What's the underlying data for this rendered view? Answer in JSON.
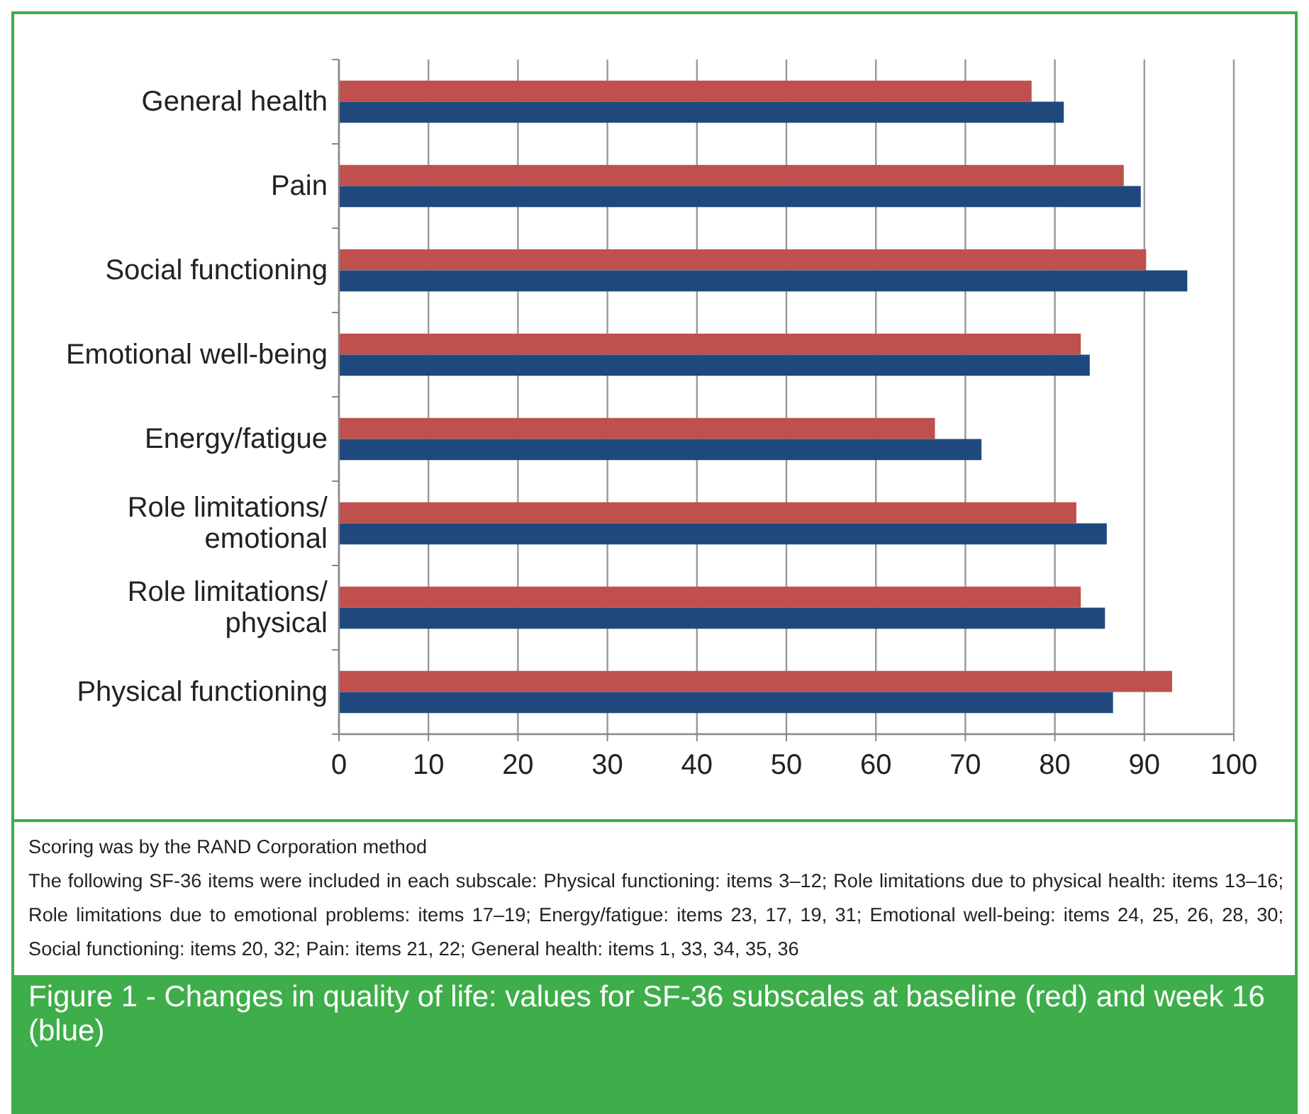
{
  "chart_data": {
    "type": "bar",
    "orientation": "horizontal",
    "title": "Figure 1 - Changes in quality of life: values for SF-36 subscales at baseline (red) and week 16 (blue)",
    "categories": [
      "General health",
      "Pain",
      "Social functioning",
      "Emotional well-being",
      "Energy/fatigue",
      "Role limitations/\nemotional",
      "Role limitations/\nphysical",
      "Physical functioning"
    ],
    "series": [
      {
        "color": "#c0504d",
        "values": [
          77.4,
          87.7,
          90.2,
          82.9,
          66.6,
          82.4,
          82.9,
          93.1
        ]
      },
      {
        "color": "#1f497d",
        "values": [
          81.0,
          89.6,
          94.8,
          83.9,
          71.8,
          85.8,
          85.6,
          86.5
        ]
      }
    ],
    "xlim": [
      0,
      100
    ],
    "xticks": [
      0,
      10,
      20,
      30,
      40,
      50,
      60,
      70,
      80,
      90,
      100
    ],
    "grid": "x",
    "annotations": [
      "Scoring was by the RAND Corporation method",
      "The following SF-36 items were included in each subscale: Physical functioning: items 3–12; Role limitations due to physical health: items 13–16; Role limitations due to emotional problems: items 17–19; Energy/fatigue: items 23, 17, 19, 31; Emotional well-being: items 24, 25, 26, 28, 30; Social functioning: items 20, 32; Pain: items 21, 22; General health: items 1, 33, 34, 35, 36"
    ]
  }
}
